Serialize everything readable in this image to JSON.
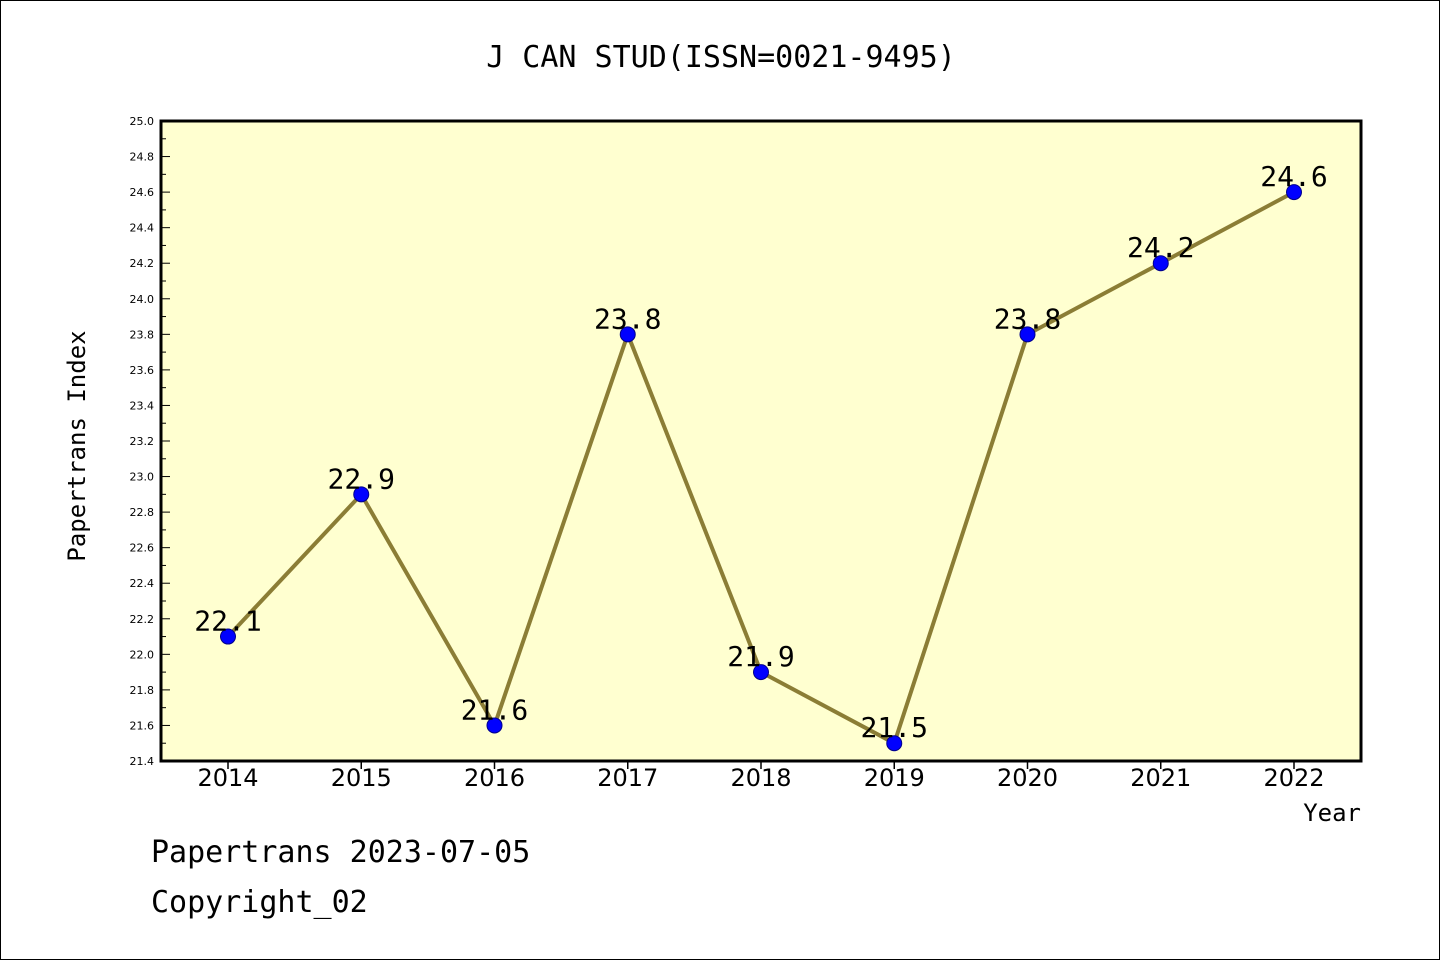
{
  "chart_data": {
    "type": "line",
    "title": "J CAN STUD(ISSN=0021-9495)",
    "xlabel": "Year",
    "ylabel": "Papertrans Index",
    "categories": [
      "2014",
      "2015",
      "2016",
      "2017",
      "2018",
      "2019",
      "2020",
      "2021",
      "2022"
    ],
    "values": [
      22.1,
      22.9,
      21.6,
      23.8,
      21.9,
      21.5,
      23.8,
      24.2,
      24.6
    ],
    "data_labels": [
      "22.1",
      "22.9",
      "21.6",
      "23.8",
      "21.9",
      "21.5",
      "23.8",
      "24.2",
      "24.6"
    ],
    "ylim": [
      21.4,
      25.0
    ],
    "yticks": [
      "21.4",
      "21.6",
      "21.8",
      "22.0",
      "22.2",
      "22.4",
      "22.6",
      "22.8",
      "23.0",
      "23.2",
      "23.4",
      "23.6",
      "23.8",
      "24.0",
      "24.2",
      "24.4",
      "24.6",
      "24.8",
      "25.0"
    ],
    "grid": false,
    "colors": {
      "plot_background": "#ffffd0",
      "line": "#8b7d35",
      "marker": "#0000ff",
      "marker_edge": "#00008b"
    }
  },
  "footer": {
    "date_line": "Papertrans 2023-07-05",
    "copyright": "Copyright_02"
  }
}
